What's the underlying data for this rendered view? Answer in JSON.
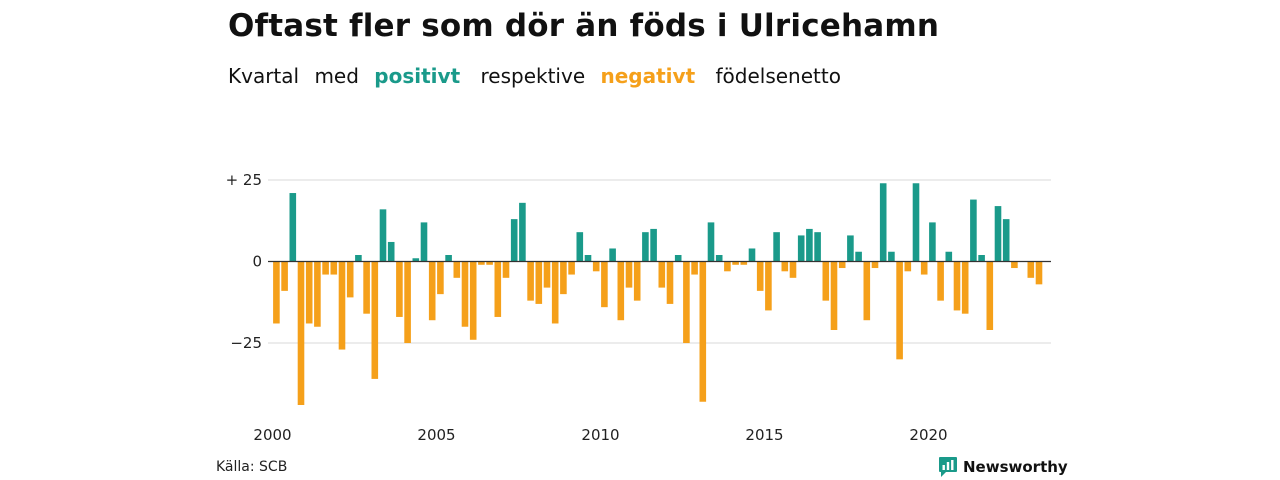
{
  "title": "Oftast fler som dör än föds i Ulricehamn",
  "subtitle": {
    "w1": "Kvartal",
    "w2": "med",
    "positive": "positivt",
    "w3": "respektive",
    "negative": "negativt",
    "w4": "födelsenetto"
  },
  "colors": {
    "positive": "#1a9a8a",
    "negative": "#f5a01a",
    "grid": "#d9d9d9",
    "axis": "#333333"
  },
  "source": "Källa: SCB",
  "brand": {
    "name": "Newsworthy",
    "icon": "newsworthy-logo-icon"
  },
  "chart_data": {
    "type": "bar",
    "x_start": "2000 Q1",
    "ylim": [
      -44,
      25
    ],
    "yticks": [
      {
        "value": 25,
        "label": "+ 25"
      },
      {
        "value": 0,
        "label": "0"
      },
      {
        "value": -25,
        "label": "−25"
      }
    ],
    "xticks": [
      {
        "value": 2000,
        "label": "2000"
      },
      {
        "value": 2005,
        "label": "2005"
      },
      {
        "value": 2010,
        "label": "2010"
      },
      {
        "value": 2015,
        "label": "2015"
      },
      {
        "value": 2020,
        "label": "2020"
      }
    ],
    "values": [
      -19,
      -9,
      21,
      -44,
      -19,
      -20,
      -4,
      -4,
      -27,
      -11,
      2,
      -16,
      -36,
      16,
      6,
      -17,
      -25,
      1,
      12,
      -18,
      -10,
      2,
      -5,
      -20,
      -24,
      -1,
      -1,
      -17,
      -5,
      13,
      18,
      -12,
      -13,
      -8,
      -19,
      -10,
      -4,
      9,
      2,
      -3,
      -14,
      4,
      -18,
      -8,
      -12,
      9,
      10,
      -8,
      -13,
      2,
      -25,
      -4,
      -43,
      12,
      2,
      -3,
      -1,
      -1,
      4,
      -9,
      -15,
      9,
      -3,
      -5,
      8,
      10,
      9,
      -12,
      -21,
      -2,
      8,
      3,
      -18,
      -2,
      24,
      3,
      -30,
      -3,
      24,
      -4,
      12,
      -12,
      3,
      -15,
      -16,
      19,
      2,
      -21,
      17,
      13,
      -2,
      0,
      -5,
      -7
    ],
    "grid": true,
    "legend": "none"
  }
}
